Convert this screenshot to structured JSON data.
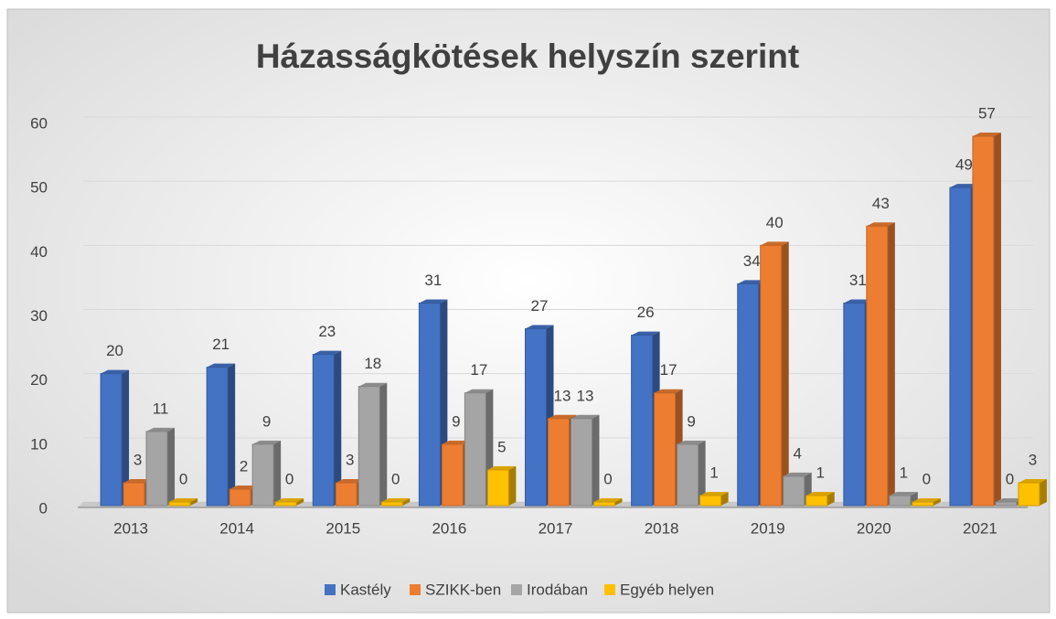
{
  "chart_data": {
    "type": "bar3d",
    "title": "Házasságkötések helyszín szerint",
    "categories": [
      "2013",
      "2014",
      "2015",
      "2016",
      "2017",
      "2018",
      "2019",
      "2020",
      "2021"
    ],
    "series": [
      {
        "name": "Kastély",
        "color": "#4472c4",
        "values": [
          20,
          21,
          23,
          31,
          27,
          26,
          34,
          31,
          49
        ]
      },
      {
        "name": "SZIKK-ben",
        "color": "#ed7d31",
        "values": [
          3,
          2,
          3,
          9,
          13,
          17,
          40,
          43,
          57
        ]
      },
      {
        "name": "Irodában",
        "color": "#a5a5a5",
        "values": [
          11,
          9,
          18,
          17,
          13,
          9,
          4,
          1,
          0
        ]
      },
      {
        "name": "Egyéb helyen",
        "color": "#ffc000",
        "values": [
          0,
          0,
          0,
          5,
          0,
          1,
          1,
          0,
          3
        ]
      }
    ],
    "ylim": [
      0,
      60
    ],
    "yticks": [
      0,
      10,
      20,
      30,
      40,
      50,
      60
    ],
    "grid": true,
    "legend": "bottom"
  }
}
